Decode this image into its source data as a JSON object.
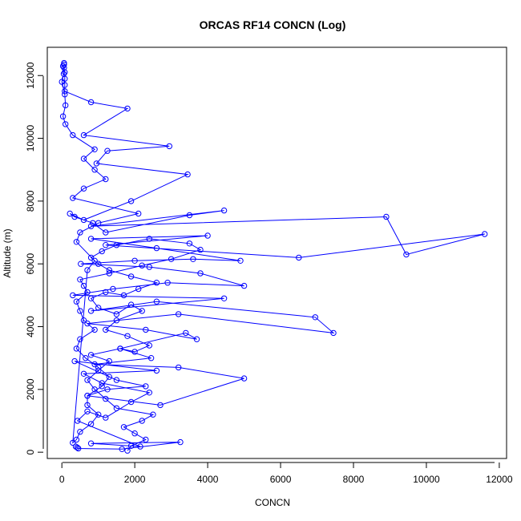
{
  "chart_data": {
    "type": "line",
    "title": "ORCAS RF14 CONCN (Log)",
    "xlabel": "CONCN",
    "ylabel": "Altitude (m)",
    "xlim": [
      -400,
      12200
    ],
    "ylim": [
      -200,
      12900
    ],
    "xticks": [
      0,
      2000,
      4000,
      6000,
      8000,
      10000,
      12000
    ],
    "yticks": [
      0,
      2000,
      4000,
      6000,
      8000,
      10000,
      12000
    ],
    "xtick_labels": [
      "0",
      "2000",
      "4000",
      "6000",
      "8000",
      "10000",
      "12000"
    ],
    "ytick_labels": [
      "0",
      "2000",
      "4000",
      "6000",
      "8000",
      "10000",
      "12000"
    ],
    "grid": false,
    "legend": "none",
    "color": "#0000ff",
    "marker": "open-circle",
    "series": [
      {
        "x": [
          420,
          380,
          450,
          1650,
          3250,
          800,
          2150,
          430,
          700,
          1200,
          1900,
          2400,
          1100,
          600,
          2600,
          350,
          1500,
          2300,
          1250,
          700,
          2700,
          5000,
          3200,
          900,
          2450,
          1600,
          3400,
          3700,
          2300,
          700,
          3200,
          7450,
          6950,
          2600,
          800,
          4450,
          300,
          1400,
          2900,
          5000,
          3800,
          2400,
          520,
          2000,
          3600,
          4900,
          2600,
          800,
          4000,
          1200,
          6500,
          11600,
          9450,
          8900,
          800,
          4450,
          3500,
          1200,
          850,
          350,
          220,
          600,
          1900,
          3450,
          950,
          1250,
          2950,
          600,
          1800,
          800,
          80,
          80,
          80,
          80,
          60,
          60,
          60
        ],
        "y": [
          150,
          180,
          120,
          100,
          320,
          280,
          180,
          1000,
          1300,
          1100,
          1600,
          1900,
          2200,
          2500,
          2600,
          2900,
          2300,
          2100,
          2000,
          1800,
          1500,
          2350,
          2700,
          2800,
          3000,
          3300,
          3800,
          3600,
          3900,
          4100,
          4400,
          3800,
          4300,
          4800,
          4500,
          4900,
          5000,
          5200,
          5400,
          5300,
          5700,
          5900,
          6000,
          6100,
          6150,
          6100,
          6500,
          6800,
          6900,
          6600,
          6200,
          6950,
          6300,
          7500,
          7200,
          7700,
          7550,
          7000,
          7300,
          7500,
          7600,
          7400,
          8000,
          8850,
          9200,
          9600,
          9750,
          10100,
          10950,
          11150,
          11500,
          11700,
          11900,
          12100,
          12250,
          12350,
          12400
        ]
      },
      {
        "x": [
          1800,
          1900,
          2300,
          2000,
          1700,
          2200,
          2500,
          1500,
          1200,
          900,
          700,
          1000,
          1300,
          800,
          1600,
          2000,
          2400,
          1800,
          1200,
          1500,
          2200,
          1900,
          1500,
          1000,
          800,
          1200,
          1700,
          2100,
          2600,
          1900,
          1300,
          1000,
          800,
          1100,
          1500,
          2400,
          3500,
          3800,
          3000,
          2200,
          1300,
          500,
          600,
          700,
          400,
          500,
          600,
          900,
          500,
          400,
          650,
          1000,
          1300,
          1100,
          700,
          700,
          1000,
          800,
          500,
          400,
          300,
          700,
          900,
          400,
          500,
          1000,
          2100,
          300,
          600,
          1200,
          900,
          600,
          900,
          300,
          100,
          30,
          100,
          80,
          0,
          50,
          30
        ],
        "y": [
          50,
          200,
          400,
          600,
          800,
          1000,
          1200,
          1400,
          1700,
          2000,
          2300,
          2600,
          2900,
          3100,
          3300,
          3200,
          3400,
          3700,
          3900,
          4200,
          4500,
          4700,
          4400,
          4600,
          4900,
          5100,
          5000,
          5200,
          5400,
          5600,
          5800,
          6000,
          6200,
          6400,
          6600,
          6800,
          6650,
          6450,
          6150,
          5950,
          5700,
          5500,
          5300,
          5100,
          4800,
          4500,
          4200,
          3900,
          3600,
          3300,
          3000,
          2700,
          2400,
          2100,
          1800,
          1500,
          1200,
          900,
          650,
          400,
          300,
          5800,
          6100,
          6700,
          7000,
          7300,
          7600,
          8100,
          8400,
          8700,
          9000,
          9350,
          9650,
          10100,
          10450,
          10700,
          11050,
          11400,
          11800,
          12050,
          12300
        ]
      }
    ]
  }
}
